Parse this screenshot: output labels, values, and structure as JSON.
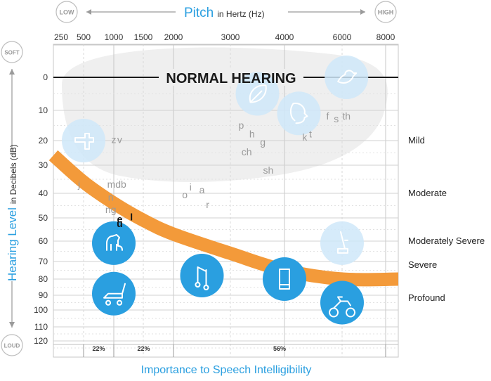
{
  "chart_data": {
    "type": "line",
    "title": "Pitch",
    "title_suffix": "in Hertz (Hz)",
    "pitch_low_label": "LOW",
    "pitch_high_label": "HIGH",
    "ylabel": "Hearing Level",
    "ylabel_suffix": "in Decibels (dB)",
    "level_soft_label": "SOFT",
    "level_loud_label": "LOUD",
    "x_ticks": [
      "250",
      "500",
      "1000",
      "1500",
      "2000",
      "3000",
      "4000",
      "6000",
      "8000"
    ],
    "y_ticks": [
      "0",
      "10",
      "20",
      "30",
      "40",
      "50",
      "60",
      "70",
      "80",
      "90",
      "100",
      "110",
      "120"
    ],
    "ylim": [
      -10,
      125
    ],
    "normal_hearing_label": "NORMAL HEARING",
    "severity_labels": [
      {
        "label": "Mild",
        "db": 20
      },
      {
        "label": "Moderate",
        "db": 40
      },
      {
        "label": "Moderately Severe",
        "db": 60
      },
      {
        "label": "Severe",
        "db": 72
      },
      {
        "label": "Profound",
        "db": 92
      }
    ],
    "hearing_loss_band": {
      "x": [
        "125",
        "500",
        "1000",
        "1500",
        "2000",
        "3000",
        "4000",
        "6000",
        "8000"
      ],
      "db": [
        26,
        36,
        44,
        51,
        57,
        66,
        75,
        80,
        80
      ]
    },
    "speech_sounds": [
      {
        "text": "z",
        "hz": 1000,
        "db": 21
      },
      {
        "text": "v",
        "hz": 1100,
        "db": 21
      },
      {
        "text": "j",
        "hz": 450,
        "db": 38
      },
      {
        "text": "mdb",
        "hz": 1050,
        "db": 38
      },
      {
        "text": "n",
        "hz": 950,
        "db": 43
      },
      {
        "text": "ng",
        "hz": 950,
        "db": 48
      },
      {
        "text": "e",
        "hz": 1100,
        "db": 52
      },
      {
        "text": "l",
        "hz": 1300,
        "db": 51
      },
      {
        "text": "u",
        "hz": 1100,
        "db": 54
      },
      {
        "text": "o",
        "hz": 2200,
        "db": 42
      },
      {
        "text": "i",
        "hz": 2300,
        "db": 39
      },
      {
        "text": "a",
        "hz": 2500,
        "db": 40
      },
      {
        "text": "r",
        "hz": 2600,
        "db": 46
      },
      {
        "text": "p",
        "hz": 3200,
        "db": 16
      },
      {
        "text": "h",
        "hz": 3400,
        "db": 19
      },
      {
        "text": "g",
        "hz": 3600,
        "db": 22
      },
      {
        "text": "ch",
        "hz": 3300,
        "db": 26
      },
      {
        "text": "sh",
        "hz": 3700,
        "db": 33
      },
      {
        "text": "k",
        "hz": 4700,
        "db": 20
      },
      {
        "text": "t",
        "hz": 4900,
        "db": 19
      },
      {
        "text": "f",
        "hz": 5500,
        "db": 13
      },
      {
        "text": "s",
        "hz": 5800,
        "db": 14
      },
      {
        "text": "th",
        "hz": 6200,
        "db": 13
      }
    ],
    "sound_icons": [
      {
        "icon": "faucet-icon",
        "hz": 500,
        "db": 20
      },
      {
        "icon": "leaves-icon",
        "hz": 3500,
        "db": 5
      },
      {
        "icon": "whisper-face-icon",
        "hz": 4500,
        "db": 11
      },
      {
        "icon": "bird-icon",
        "hz": 6200,
        "db": 0
      },
      {
        "icon": "dog-icon",
        "hz": 1000,
        "db": 61
      },
      {
        "icon": "vacuum-icon",
        "hz": 6000,
        "db": 61
      },
      {
        "icon": "lawnmower-icon",
        "hz": 1000,
        "db": 89
      },
      {
        "icon": "music-notes-icon",
        "hz": 2500,
        "db": 78
      },
      {
        "icon": "phone-icon",
        "hz": 4000,
        "db": 80
      },
      {
        "icon": "motorcycle-icon",
        "hz": 6000,
        "db": 95
      }
    ],
    "importance_label": "Importance to Speech Intelligibility",
    "importance_segments": [
      {
        "label": "22%",
        "from": "500",
        "to": "1000"
      },
      {
        "label": "22%",
        "from": "1000",
        "to": "2000"
      },
      {
        "label": "56%",
        "from": "2000",
        "to": "8000"
      }
    ],
    "colors": {
      "accent_blue": "#2a9fe0",
      "icon_bubble_light": "#cfe8f9",
      "hearing_band": "#f39a3a",
      "speech_region": "#efefef",
      "grid": "#c7c7c7"
    }
  }
}
